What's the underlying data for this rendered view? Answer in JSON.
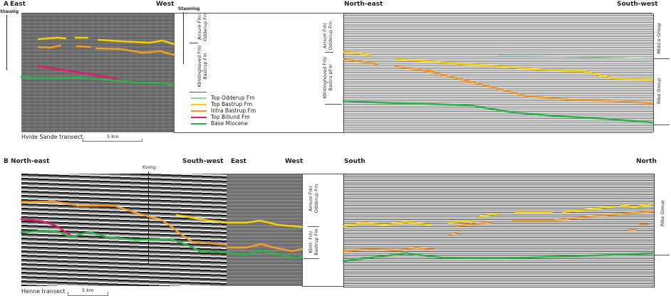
{
  "panel_a": {
    "letter": "A",
    "left_section": {
      "dir_left": "East",
      "dir_right": "West",
      "well_left": "Staunig",
      "well_right": "Stauning",
      "caption": "Hvide Sande transect",
      "scale": "5 km"
    },
    "strat_labels": {
      "upper": "Arnum Fm/ Odderup Fm",
      "lower": "Klintinghoved Fm/ Bastrup Fm"
    },
    "right_section": {
      "dir_left": "North-east",
      "dir_right": "South-west",
      "strat_upper": "Arnum Fm/ Odderup Fm",
      "strat_lower": "Klintinghoved Fm/ Bastru pFm",
      "group_upper": "Midd e Group",
      "group_lower": "Ribe Group"
    }
  },
  "legend": [
    {
      "label": "Top Odderup Fm",
      "color": "#8fd19a"
    },
    {
      "label": "Top Bastrup Fm",
      "color": "#f5d000"
    },
    {
      "label": "Intra Bastrup Fm",
      "color": "#f39a2a"
    },
    {
      "label": "Top Billund Fm",
      "color": "#e8196b"
    },
    {
      "label": "Base Miocene",
      "color": "#2bb34a"
    }
  ],
  "panel_b": {
    "letter": "B",
    "left_section": {
      "dir_left": "North-east",
      "dir_right": "South-west",
      "well": "Kvong",
      "caption": "Henne transect",
      "scale": "5 km"
    },
    "middle_section": {
      "dir_left": "East",
      "dir_right": "West"
    },
    "strat_labels": {
      "upper": "Arnum Fm/ Odderup Fm",
      "lower": "Klint. Fm/ Bastrup Fm"
    },
    "right_section": {
      "dir_left": "South",
      "dir_right": "North",
      "group": "Ribe Group"
    }
  }
}
